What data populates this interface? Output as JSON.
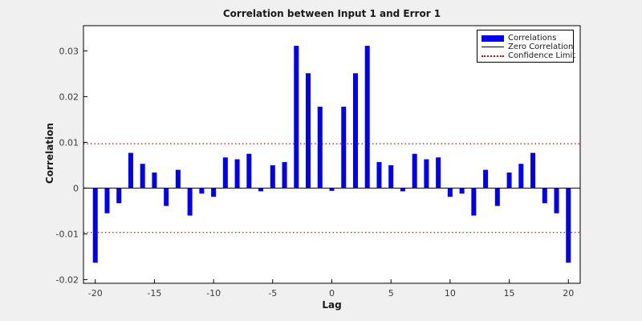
{
  "figure": {
    "background_color": "#f0f0f0",
    "plot_background_color": "#ffffff"
  },
  "chart_data": {
    "type": "bar",
    "title": "Correlation between Input 1 and Error 1",
    "xlabel": "Lag",
    "ylabel": "Correlation",
    "x": [
      -20,
      -19,
      -18,
      -17,
      -16,
      -15,
      -14,
      -13,
      -12,
      -11,
      -10,
      -9,
      -8,
      -7,
      -6,
      -5,
      -4,
      -3,
      -2,
      -1,
      0,
      1,
      2,
      3,
      4,
      5,
      6,
      7,
      8,
      9,
      10,
      11,
      12,
      13,
      14,
      15,
      16,
      17,
      18,
      19,
      20
    ],
    "values": [
      -0.0163,
      -0.0055,
      -0.0033,
      0.0077,
      0.0053,
      0.0034,
      -0.0039,
      0.004,
      -0.006,
      -0.0012,
      -0.0019,
      0.0067,
      0.0063,
      0.0075,
      -0.0007,
      0.005,
      0.0057,
      0.0311,
      0.0251,
      0.0178,
      -0.0006,
      0.0178,
      0.0251,
      0.0311,
      0.0057,
      0.005,
      -0.0007,
      0.0075,
      0.0063,
      0.0067,
      -0.0019,
      -0.0012,
      -0.006,
      0.004,
      -0.0039,
      0.0034,
      0.0053,
      0.0077,
      -0.0033,
      -0.0055,
      -0.0163
    ],
    "xlim": [
      -21,
      21
    ],
    "ylim": [
      -0.0208,
      0.0355
    ],
    "xticks": [
      -20,
      -15,
      -10,
      -5,
      0,
      5,
      10,
      15,
      20
    ],
    "xtick_labels": [
      "-20",
      "-15",
      "-10",
      "-5",
      "0",
      "5",
      "10",
      "15",
      "20"
    ],
    "yticks": [
      -0.02,
      -0.01,
      0,
      0.01,
      0.02,
      0.03
    ],
    "ytick_labels": [
      "-0.02",
      "-0.01",
      "0",
      "0.01",
      "0.02",
      "0.03"
    ],
    "zero_line": 0,
    "confidence_limit": 0.0097,
    "grid": false,
    "bar_color": "#0000ee",
    "zero_line_color": "#000000",
    "confidence_color": "#e00000",
    "legend_position": "top-right",
    "legend": [
      {
        "label": "Correlations",
        "type": "bar",
        "color": "#0000ee"
      },
      {
        "label": "Zero Correlation",
        "type": "line",
        "color": "#000000"
      },
      {
        "label": "Confidence Limit",
        "type": "dotted-line",
        "color": "#e00000"
      }
    ]
  }
}
